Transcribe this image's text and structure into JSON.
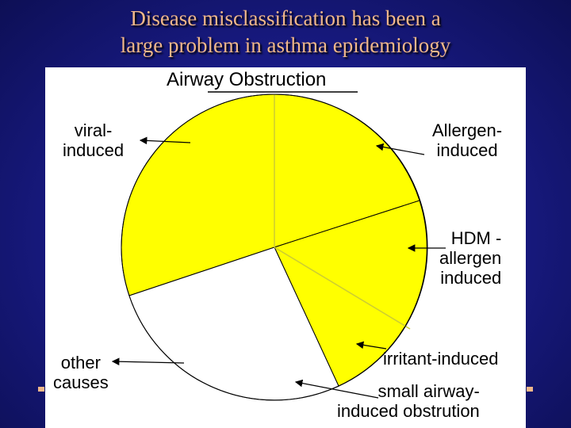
{
  "title": {
    "line1": "Disease misclassification has been a",
    "line2": "large problem in asthma epidemiology"
  },
  "pie": {
    "title": "Airway Obstruction",
    "slice_color": "#ffff00",
    "other_color": "#ffffff"
  },
  "labels": {
    "viral_line1": "viral-",
    "viral_line2": "induced",
    "allergen_line1": "Allergen-",
    "allergen_line2": "induced",
    "hdm_line1": "HDM -",
    "hdm_line2": "allergen",
    "hdm_line3": "induced",
    "other_line1": "other",
    "other_line2": "causes",
    "irritant": "irritant-induced",
    "small_line1": "small airway-",
    "small_line2": "induced obstrution"
  },
  "colors": {
    "background": "#1a1c8a",
    "title": "#f0b78a"
  }
}
